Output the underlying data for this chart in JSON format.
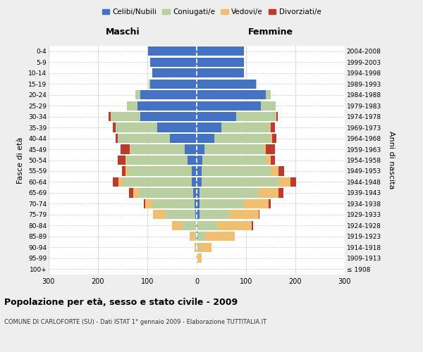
{
  "age_groups": [
    "100+",
    "95-99",
    "90-94",
    "85-89",
    "80-84",
    "75-79",
    "70-74",
    "65-69",
    "60-64",
    "55-59",
    "50-54",
    "45-49",
    "40-44",
    "35-39",
    "30-34",
    "25-29",
    "20-24",
    "15-19",
    "10-14",
    "5-9",
    "0-4"
  ],
  "birth_years": [
    "≤ 1908",
    "1909-1913",
    "1914-1918",
    "1919-1923",
    "1924-1928",
    "1929-1933",
    "1934-1938",
    "1939-1943",
    "1944-1948",
    "1949-1953",
    "1954-1958",
    "1959-1963",
    "1964-1968",
    "1969-1973",
    "1974-1978",
    "1979-1983",
    "1984-1988",
    "1989-1993",
    "1994-1998",
    "1999-2003",
    "2004-2008"
  ],
  "males": {
    "celibe": [
      0,
      0,
      0,
      0,
      0,
      3,
      5,
      7,
      10,
      10,
      18,
      25,
      55,
      80,
      115,
      120,
      115,
      95,
      90,
      95,
      98
    ],
    "coniugato": [
      0,
      0,
      0,
      5,
      30,
      60,
      85,
      110,
      140,
      130,
      125,
      110,
      105,
      85,
      60,
      20,
      10,
      2,
      0,
      0,
      0
    ],
    "vedovo": [
      0,
      2,
      5,
      10,
      20,
      25,
      15,
      12,
      8,
      4,
      2,
      1,
      0,
      0,
      0,
      2,
      0,
      0,
      0,
      0,
      0
    ],
    "divorziato": [
      0,
      0,
      0,
      0,
      0,
      0,
      2,
      8,
      12,
      8,
      15,
      18,
      4,
      5,
      4,
      0,
      0,
      0,
      0,
      0,
      0
    ]
  },
  "females": {
    "nubile": [
      0,
      0,
      0,
      2,
      2,
      5,
      5,
      5,
      10,
      10,
      12,
      15,
      35,
      50,
      80,
      130,
      140,
      120,
      95,
      95,
      95
    ],
    "coniugata": [
      0,
      2,
      5,
      15,
      40,
      60,
      90,
      120,
      155,
      140,
      130,
      120,
      115,
      98,
      80,
      30,
      10,
      2,
      0,
      0,
      0
    ],
    "vedova": [
      2,
      8,
      25,
      60,
      70,
      60,
      50,
      40,
      25,
      15,
      8,
      5,
      3,
      2,
      2,
      0,
      0,
      0,
      0,
      0,
      0
    ],
    "divorziata": [
      0,
      0,
      0,
      0,
      2,
      2,
      5,
      10,
      12,
      12,
      8,
      18,
      8,
      8,
      2,
      0,
      0,
      0,
      0,
      0,
      0
    ]
  },
  "colors": {
    "celibe": "#4472c4",
    "coniugato": "#b8cfa0",
    "vedovo": "#f0c070",
    "divorziato": "#c0392b"
  },
  "xlim": 300,
  "title": "Popolazione per età, sesso e stato civile - 2009",
  "subtitle": "COMUNE DI CARLOFORTE (SU) - Dati ISTAT 1° gennaio 2009 - Elaborazione TUTTITALIA.IT",
  "ylabel_left": "Fasce di età",
  "ylabel_right": "Anni di nascita",
  "xlabel_left": "Maschi",
  "xlabel_right": "Femmine",
  "bg_color": "#eeeeee",
  "plot_bg": "#ffffff"
}
